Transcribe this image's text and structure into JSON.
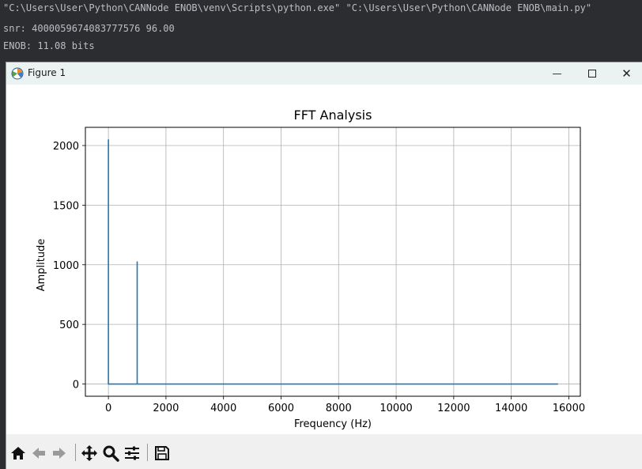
{
  "console": {
    "lines": [
      "\"C:\\Users\\User\\Python\\CANNode ENOB\\venv\\Scripts\\python.exe\" \"C:\\Users\\User\\Python\\CANNode ENOB\\main.py\"",
      "snr: 4000059674083777576 96.00",
      "ENOB: 11.08 bits"
    ]
  },
  "window": {
    "title": "Figure 1",
    "controls": {
      "minimize": "—",
      "close": "✕"
    }
  },
  "toolbar": {
    "buttons": [
      "home-icon",
      "back-arrow-icon",
      "forward-arrow-icon",
      "pan-move-icon",
      "zoom-magnifier-icon",
      "configure-subplots-icon",
      "save-floppy-icon"
    ]
  },
  "chart_data": {
    "type": "line",
    "title": "FFT Analysis",
    "xlabel": "Frequency (Hz)",
    "ylabel": "Amplitude",
    "xlim": [
      -800,
      16400
    ],
    "ylim": [
      -102.5,
      2152.5
    ],
    "xticks": [
      0,
      2000,
      4000,
      6000,
      8000,
      10000,
      12000,
      14000,
      16000
    ],
    "yticks": [
      0,
      500,
      1000,
      1500,
      2000
    ],
    "grid": true,
    "series": [
      {
        "color": "#1f77b4",
        "x": [
          0,
          0,
          0,
          1000,
          1000,
          1000,
          15625
        ],
        "y": [
          0,
          2048,
          0,
          0,
          1024,
          0,
          0
        ]
      }
    ]
  }
}
